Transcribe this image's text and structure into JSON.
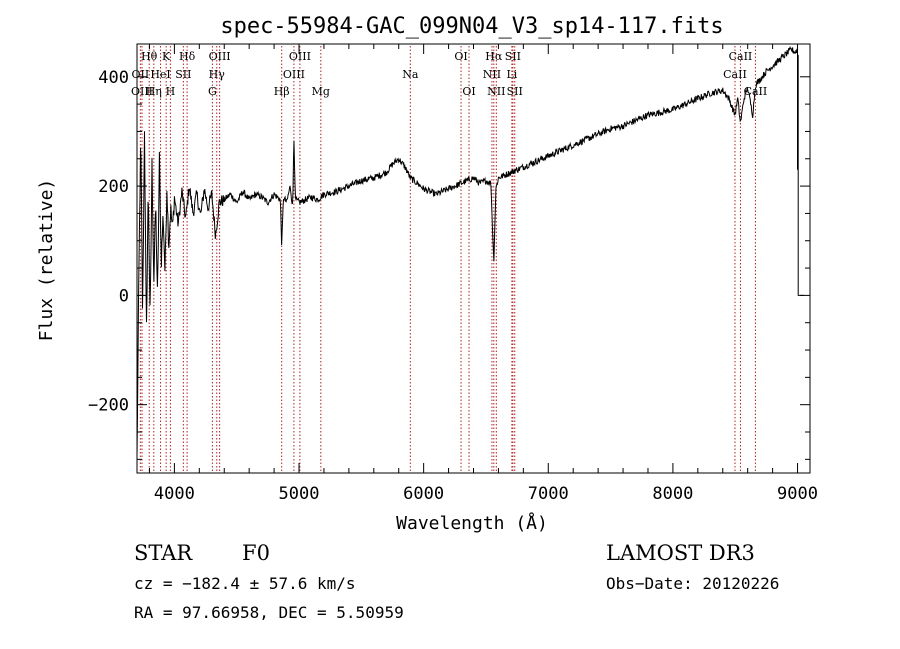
{
  "chart_data": {
    "type": "line",
    "title": "spec-55984-GAC_099N04_V3_sp14-117.fits",
    "xlabel": "Wavelength (Å)",
    "ylabel": "Flux (relative)",
    "xlim": [
      3700,
      9100
    ],
    "ylim": [
      -325,
      460
    ],
    "x_ticks": [
      4000,
      5000,
      6000,
      7000,
      8000,
      9000
    ],
    "x_tick_labels": [
      "4000",
      "5000",
      "6000",
      "7000",
      "8000",
      "9000"
    ],
    "y_ticks": [
      -200,
      0,
      200,
      400
    ],
    "y_tick_labels": [
      "−200",
      "0",
      "200",
      "400"
    ],
    "series": [
      {
        "name": "flux",
        "x": [
          3700,
          3715,
          3730,
          3745,
          3760,
          3775,
          3790,
          3805,
          3820,
          3835,
          3850,
          3865,
          3880,
          3895,
          3910,
          3925,
          3940,
          3955,
          3970,
          3985,
          4000,
          4030,
          4060,
          4090,
          4120,
          4150,
          4180,
          4210,
          4240,
          4270,
          4300,
          4330,
          4360,
          4400,
          4450,
          4500,
          4550,
          4600,
          4650,
          4700,
          4750,
          4800,
          4850,
          4861,
          4875,
          4900,
          4930,
          4950,
          4959,
          4970,
          5007,
          5050,
          5100,
          5150,
          5200,
          5300,
          5400,
          5500,
          5600,
          5700,
          5750,
          5800,
          5850,
          5893,
          5950,
          6000,
          6050,
          6100,
          6150,
          6200,
          6250,
          6300,
          6350,
          6400,
          6450,
          6500,
          6540,
          6563,
          6580,
          6600,
          6650,
          6700,
          6750,
          6800,
          6900,
          7000,
          7100,
          7200,
          7300,
          7400,
          7500,
          7600,
          7700,
          7800,
          7900,
          8000,
          8100,
          8200,
          8300,
          8400,
          8450,
          8498,
          8520,
          8542,
          8570,
          8600,
          8640,
          8662,
          8700,
          8750,
          8800,
          8850,
          8900,
          8950,
          8980,
          9000
        ],
        "y": [
          -300,
          40,
          290,
          -40,
          310,
          -80,
          200,
          -50,
          240,
          20,
          170,
          -10,
          250,
          60,
          150,
          40,
          200,
          90,
          160,
          120,
          180,
          130,
          190,
          140,
          200,
          150,
          185,
          145,
          195,
          160,
          185,
          110,
          170,
          175,
          185,
          170,
          190,
          175,
          185,
          180,
          170,
          185,
          175,
          90,
          180,
          170,
          200,
          160,
          300,
          175,
          170,
          175,
          180,
          175,
          185,
          190,
          200,
          210,
          215,
          225,
          240,
          250,
          235,
          215,
          205,
          195,
          190,
          185,
          190,
          195,
          200,
          205,
          210,
          215,
          205,
          210,
          205,
          60,
          195,
          215,
          220,
          225,
          230,
          235,
          245,
          255,
          265,
          275,
          285,
          295,
          305,
          310,
          320,
          330,
          335,
          340,
          350,
          360,
          370,
          375,
          360,
          330,
          360,
          315,
          360,
          380,
          330,
          385,
          395,
          410,
          420,
          430,
          440,
          450,
          445,
          450
        ]
      }
    ],
    "spectral_lines": [
      {
        "label": "Hθ",
        "wavelength": 3798,
        "row": 1
      },
      {
        "label": "OII",
        "wavelength": 3727,
        "row": 2
      },
      {
        "label": "OIII",
        "wavelength": 3740,
        "row": 3
      },
      {
        "label": "Hη",
        "wavelength": 3835,
        "row": 3
      },
      {
        "label": "K",
        "wavelength": 3934,
        "row": 1
      },
      {
        "label": "HeI",
        "wavelength": 3889,
        "row": 2
      },
      {
        "label": "H",
        "wavelength": 3968,
        "row": 3
      },
      {
        "label": "Hδ",
        "wavelength": 4102,
        "row": 1
      },
      {
        "label": "SII",
        "wavelength": 4072,
        "row": 2
      },
      {
        "label": "OIII",
        "wavelength": 4363,
        "row": 1
      },
      {
        "label": "Hγ",
        "wavelength": 4340,
        "row": 2
      },
      {
        "label": "G",
        "wavelength": 4305,
        "row": 3
      },
      {
        "label": "OIII",
        "wavelength": 5007,
        "row": 1
      },
      {
        "label": "OIII",
        "wavelength": 4959,
        "row": 2
      },
      {
        "label": "Hβ",
        "wavelength": 4861,
        "row": 3
      },
      {
        "label": "Mg",
        "wavelength": 5175,
        "row": 3
      },
      {
        "label": "Na",
        "wavelength": 5893,
        "row": 2
      },
      {
        "label": "OI",
        "wavelength": 6300,
        "row": 1
      },
      {
        "label": "OI",
        "wavelength": 6364,
        "row": 3
      },
      {
        "label": "Hα",
        "wavelength": 6563,
        "row": 1
      },
      {
        "label": "NII",
        "wavelength": 6548,
        "row": 2
      },
      {
        "label": "NII",
        "wavelength": 6583,
        "row": 3
      },
      {
        "label": "SII",
        "wavelength": 6716,
        "row": 1
      },
      {
        "label": "Li",
        "wavelength": 6708,
        "row": 2
      },
      {
        "label": "SII",
        "wavelength": 6731,
        "row": 3
      },
      {
        "label": "CaII",
        "wavelength": 8542,
        "row": 1
      },
      {
        "label": "CaII",
        "wavelength": 8498,
        "row": 2
      },
      {
        "label": "CaII",
        "wavelength": 8662,
        "row": 3
      }
    ],
    "line_color": "#b22222"
  },
  "info": {
    "class": "STAR",
    "subclass": "F0",
    "survey": "LAMOST DR3",
    "cz": "cz = −182.4 ± 57.6 km/s",
    "obs_date": "Obs−Date: 20120226",
    "radec": "RA =  97.66958, DEC =    5.50959"
  }
}
